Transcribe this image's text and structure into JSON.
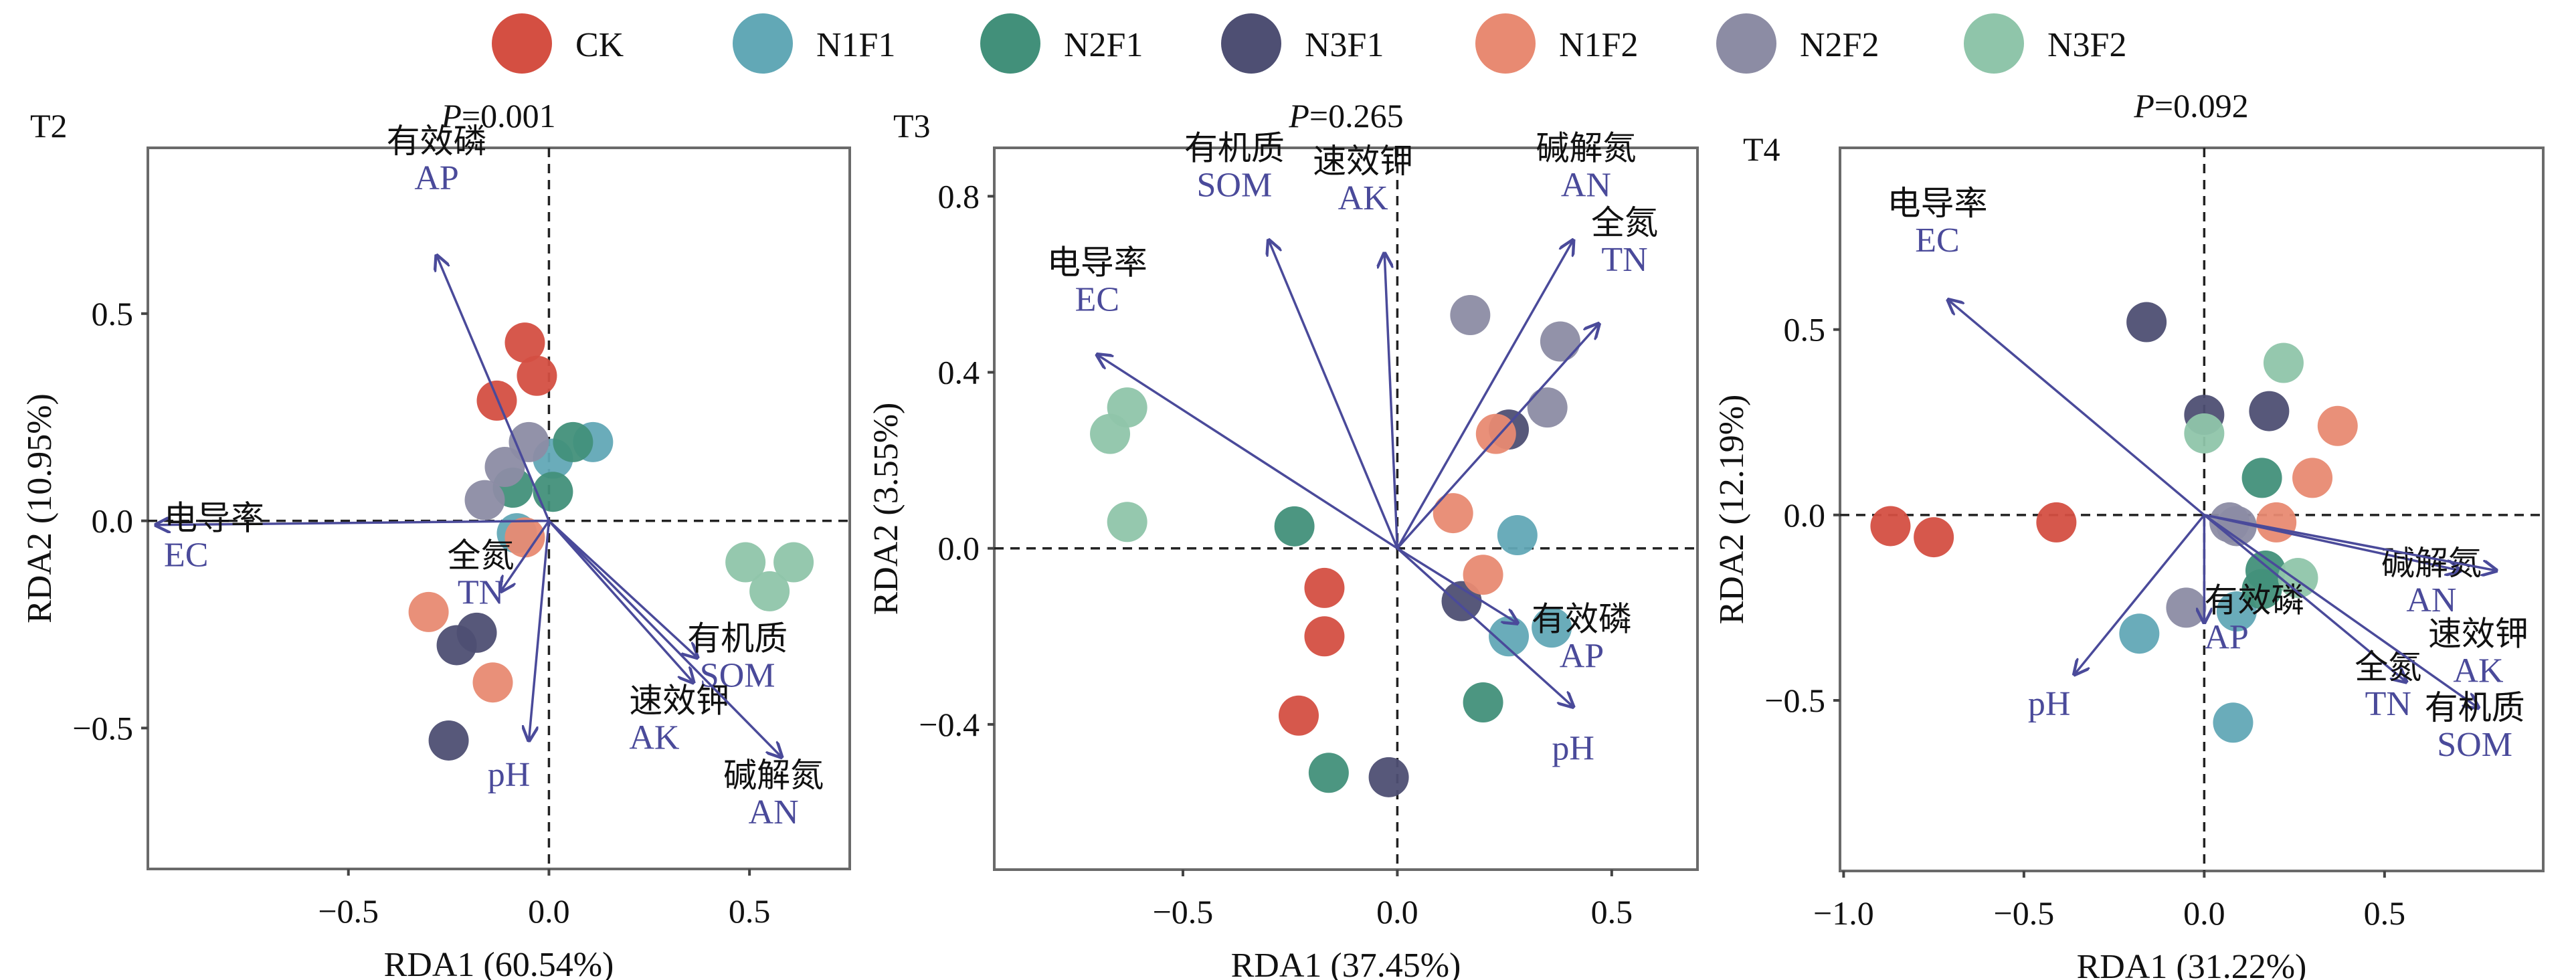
{
  "legend": {
    "items": [
      {
        "label": "CK",
        "color": "#d44f42"
      },
      {
        "label": "N1F1",
        "color": "#62a8b6"
      },
      {
        "label": "N2F1",
        "color": "#42907a"
      },
      {
        "label": "N3F1",
        "color": "#4e4f73"
      },
      {
        "label": "N1F2",
        "color": "#e88a72"
      },
      {
        "label": "N2F2",
        "color": "#8c8ca4"
      },
      {
        "label": "N3F2",
        "color": "#8fc5aa"
      }
    ]
  },
  "arrow_color": "#4a4a9a",
  "chart_data": [
    {
      "type": "scatter",
      "panel": "T2",
      "title": "P=0.001",
      "title_italic": "P",
      "title_rest": "=0.001",
      "xlabel": "RDA1 (60.54%)",
      "ylabel": "RDA2 (10.95%)",
      "xlim": [
        -1.0,
        0.75
      ],
      "ylim": [
        -0.84,
        0.9
      ],
      "xticks": [
        -0.5,
        0.0,
        0.5
      ],
      "xtick_labels": [
        "−0.5",
        "0.0",
        "0.5"
      ],
      "yticks": [
        -0.5,
        0.0,
        0.5
      ],
      "ytick_labels": [
        "−0.5",
        "0.0",
        "0.5"
      ],
      "reference_lines": {
        "x": 0,
        "y": 0,
        "style": "dashed"
      },
      "series": [
        {
          "name": "CK",
          "points": [
            [
              -0.06,
              0.43
            ],
            [
              -0.03,
              0.35
            ],
            [
              -0.13,
              0.29
            ]
          ]
        },
        {
          "name": "N1F1",
          "points": [
            [
              0.11,
              0.19
            ],
            [
              0.01,
              0.15
            ],
            [
              -0.08,
              -0.03
            ]
          ]
        },
        {
          "name": "N2F1",
          "points": [
            [
              0.06,
              0.19
            ],
            [
              0.01,
              0.07
            ],
            [
              -0.09,
              0.08
            ]
          ]
        },
        {
          "name": "N3F1",
          "points": [
            [
              -0.18,
              -0.27
            ],
            [
              -0.23,
              -0.3
            ],
            [
              -0.25,
              -0.53
            ]
          ]
        },
        {
          "name": "N1F2",
          "points": [
            [
              -0.06,
              -0.04
            ],
            [
              -0.3,
              -0.22
            ],
            [
              -0.14,
              -0.39
            ]
          ]
        },
        {
          "name": "N2F2",
          "points": [
            [
              -0.05,
              0.19
            ],
            [
              -0.11,
              0.13
            ],
            [
              -0.16,
              0.05
            ]
          ]
        },
        {
          "name": "N3F2",
          "points": [
            [
              0.49,
              -0.1
            ],
            [
              0.61,
              -0.1
            ],
            [
              0.55,
              -0.17
            ]
          ]
        }
      ],
      "vectors": [
        {
          "name": "AP",
          "cn": "有效磷",
          "x": -0.28,
          "y": 0.64,
          "label_dx": 0.0,
          "label_dy": 0.16,
          "anchor": "middle"
        },
        {
          "name": "EC",
          "cn": "电导率",
          "x": -0.98,
          "y": -0.01,
          "label_dx": 0.02,
          "label_dy": -0.1,
          "anchor": "start"
        },
        {
          "name": "TN",
          "cn": "全氮",
          "x": -0.12,
          "y": -0.17,
          "label_dx": -0.05,
          "label_dy": -0.03,
          "anchor": "middle"
        },
        {
          "name": "pH",
          "cn": "",
          "x": -0.05,
          "y": -0.53,
          "label_dx": -0.05,
          "label_dy": -0.11,
          "anchor": "middle"
        },
        {
          "name": "SOM",
          "cn": "有机质",
          "x": 0.37,
          "y": -0.33,
          "label_dx": 0.1,
          "label_dy": -0.07,
          "anchor": "middle"
        },
        {
          "name": "AK",
          "cn": "速效钾",
          "x": 0.36,
          "y": -0.39,
          "label_dx": -0.16,
          "label_dy": -0.16,
          "anchor": "start"
        },
        {
          "name": "AN",
          "cn": "碱解氮",
          "x": 0.58,
          "y": -0.57,
          "label_dx": -0.02,
          "label_dy": -0.16,
          "anchor": "middle"
        }
      ]
    },
    {
      "type": "scatter",
      "panel": "T3",
      "title": "P=0.265",
      "title_italic": "P",
      "title_rest": "=0.265",
      "xlabel": "RDA1 (37.45%)",
      "ylabel": "RDA2 (3.55%)",
      "xlim": [
        -0.94,
        0.7
      ],
      "ylim": [
        -0.73,
        0.91
      ],
      "xticks": [
        -0.5,
        0.0,
        0.5
      ],
      "xtick_labels": [
        "−0.5",
        "0.0",
        "0.5"
      ],
      "yticks": [
        -0.4,
        0.0,
        0.4,
        0.8
      ],
      "ytick_labels": [
        "−0.4",
        "0.0",
        "0.4",
        "0.8"
      ],
      "reference_lines": {
        "x": 0,
        "y": 0,
        "style": "dashed"
      },
      "series": [
        {
          "name": "CK",
          "points": [
            [
              -0.17,
              -0.09
            ],
            [
              -0.17,
              -0.2
            ],
            [
              -0.23,
              -0.38
            ]
          ]
        },
        {
          "name": "N1F1",
          "points": [
            [
              0.28,
              0.03
            ],
            [
              0.26,
              -0.2
            ],
            [
              0.36,
              -0.18
            ]
          ]
        },
        {
          "name": "N2F1",
          "points": [
            [
              -0.24,
              0.05
            ],
            [
              0.2,
              -0.35
            ],
            [
              -0.16,
              -0.51
            ]
          ]
        },
        {
          "name": "N3F1",
          "points": [
            [
              0.26,
              0.27
            ],
            [
              0.15,
              -0.12
            ],
            [
              -0.02,
              -0.52
            ]
          ]
        },
        {
          "name": "N1F2",
          "points": [
            [
              0.23,
              0.26
            ],
            [
              0.13,
              0.08
            ],
            [
              0.2,
              -0.06
            ]
          ]
        },
        {
          "name": "N2F2",
          "points": [
            [
              0.17,
              0.53
            ],
            [
              0.38,
              0.47
            ],
            [
              0.35,
              0.32
            ]
          ]
        },
        {
          "name": "N3F2",
          "points": [
            [
              -0.63,
              0.32
            ],
            [
              -0.67,
              0.26
            ],
            [
              -0.63,
              0.06
            ]
          ]
        }
      ],
      "vectors": [
        {
          "name": "EC",
          "cn": "电导率",
          "x": -0.7,
          "y": 0.44,
          "label_dx": 0.0,
          "label_dy": 0.1,
          "anchor": "middle"
        },
        {
          "name": "SOM",
          "cn": "有机质",
          "x": -0.3,
          "y": 0.7,
          "label_dx": -0.08,
          "label_dy": 0.1,
          "anchor": "middle"
        },
        {
          "name": "AK",
          "cn": "速效钾",
          "x": -0.03,
          "y": 0.67,
          "label_dx": -0.05,
          "label_dy": 0.1,
          "anchor": "middle"
        },
        {
          "name": "AN",
          "cn": "碱解氮",
          "x": 0.41,
          "y": 0.7,
          "label_dx": 0.03,
          "label_dy": 0.1,
          "anchor": "middle"
        },
        {
          "name": "TN",
          "cn": "全氮",
          "x": 0.47,
          "y": 0.51,
          "label_dx": 0.06,
          "label_dy": 0.12,
          "anchor": "middle"
        },
        {
          "name": "AP",
          "cn": "有效磷",
          "x": 0.28,
          "y": -0.17,
          "label_dx": 0.15,
          "label_dy": -0.1,
          "anchor": "middle"
        },
        {
          "name": "pH",
          "cn": "",
          "x": 0.41,
          "y": -0.36,
          "label_dx": 0.0,
          "label_dy": -0.12,
          "anchor": "middle"
        }
      ]
    },
    {
      "type": "scatter",
      "panel": "T4",
      "title": "P=0.092",
      "title_italic": "P",
      "title_rest": "=0.092",
      "xlabel": "RDA1 (31.22%)",
      "ylabel": "RDA2 (12.19%)",
      "xlim": [
        -1.01,
        0.94
      ],
      "ylim": [
        -0.96,
        0.99
      ],
      "xticks": [
        -1.0,
        -0.5,
        0.0,
        0.5
      ],
      "xtick_labels": [
        "−1.0",
        "−0.5",
        "0.0",
        "0.5"
      ],
      "yticks": [
        -0.5,
        0.0,
        0.5
      ],
      "ytick_labels": [
        "−0.5",
        "0.0",
        "0.5"
      ],
      "reference_lines": {
        "x": 0,
        "y": 0,
        "style": "dashed"
      },
      "series": [
        {
          "name": "CK",
          "points": [
            [
              -0.87,
              -0.03
            ],
            [
              -0.75,
              -0.06
            ],
            [
              -0.41,
              -0.02
            ]
          ]
        },
        {
          "name": "N1F1",
          "points": [
            [
              -0.18,
              -0.32
            ],
            [
              0.09,
              -0.26
            ],
            [
              0.08,
              -0.56
            ]
          ]
        },
        {
          "name": "N2F1",
          "points": [
            [
              0.16,
              0.1
            ],
            [
              0.17,
              -0.15
            ],
            [
              0.16,
              -0.2
            ]
          ]
        },
        {
          "name": "N3F1",
          "points": [
            [
              -0.16,
              0.52
            ],
            [
              0.0,
              0.27
            ],
            [
              0.18,
              0.28
            ]
          ]
        },
        {
          "name": "N1F2",
          "points": [
            [
              0.37,
              0.24
            ],
            [
              0.3,
              0.1
            ],
            [
              0.2,
              -0.02
            ]
          ]
        },
        {
          "name": "N2F2",
          "points": [
            [
              0.09,
              -0.03
            ],
            [
              -0.05,
              -0.25
            ],
            [
              0.07,
              -0.02
            ]
          ]
        },
        {
          "name": "N3F2",
          "points": [
            [
              0.22,
              0.41
            ],
            [
              0.0,
              0.22
            ],
            [
              0.26,
              -0.17
            ]
          ]
        }
      ],
      "vectors": [
        {
          "name": "EC",
          "cn": "电导率",
          "x": -0.71,
          "y": 0.58,
          "label_dx": -0.03,
          "label_dy": 0.13,
          "anchor": "middle"
        },
        {
          "name": "pH",
          "cn": "",
          "x": -0.36,
          "y": -0.43,
          "label_dx": -0.07,
          "label_dy": -0.11,
          "anchor": "middle"
        },
        {
          "name": "AP",
          "cn": "有效磷",
          "x": 0.0,
          "y": -0.29,
          "label_dx": 0.0,
          "label_dy": -0.07,
          "anchor": "start"
        },
        {
          "name": "AN",
          "cn": "碱解氮",
          "x": 0.71,
          "y": -0.15,
          "label_dx": -0.08,
          "label_dy": -0.11,
          "anchor": "middle"
        },
        {
          "name": "AK",
          "cn": "速效钾",
          "x": 0.81,
          "y": -0.15,
          "label_dx": -0.05,
          "label_dy": -0.3,
          "anchor": "middle"
        },
        {
          "name": "TN",
          "cn": "全氮",
          "x": 0.56,
          "y": -0.45,
          "label_dx": -0.05,
          "label_dy": -0.09,
          "anchor": "middle"
        },
        {
          "name": "SOM",
          "cn": "有机质",
          "x": 0.76,
          "y": -0.52,
          "label_dx": -0.01,
          "label_dy": -0.13,
          "anchor": "middle"
        }
      ]
    }
  ]
}
